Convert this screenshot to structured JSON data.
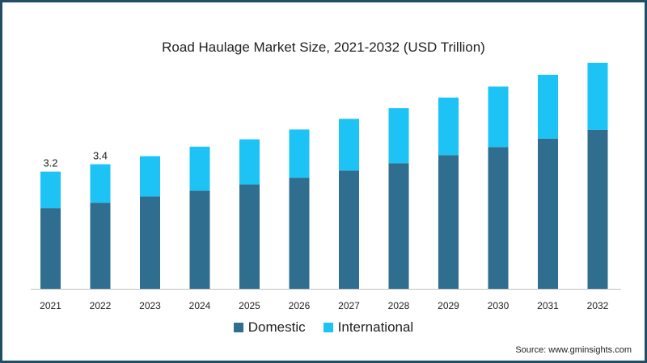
{
  "chart_data": {
    "type": "bar",
    "stacked": true,
    "title": "Road Haulage Market Size, 2021-2032 (USD Trillion)",
    "categories": [
      "2021",
      "2022",
      "2023",
      "2024",
      "2025",
      "2026",
      "2027",
      "2028",
      "2029",
      "2030",
      "2031",
      "2032"
    ],
    "series": [
      {
        "name": "Domestic",
        "color": "#2f6e8e",
        "values": [
          2.2,
          2.35,
          2.52,
          2.68,
          2.85,
          3.03,
          3.23,
          3.43,
          3.65,
          3.87,
          4.1,
          4.34
        ]
      },
      {
        "name": "International",
        "color": "#1cc3f4",
        "values": [
          1.0,
          1.05,
          1.1,
          1.2,
          1.23,
          1.32,
          1.41,
          1.5,
          1.57,
          1.65,
          1.74,
          1.83
        ]
      }
    ],
    "data_labels": [
      {
        "category": "2021",
        "text": "3.2"
      },
      {
        "category": "2022",
        "text": "3.4"
      }
    ],
    "ylim": [
      0,
      6.1
    ],
    "grid": false,
    "legend_position": "bottom"
  },
  "source": "Source: www.gminsights.com"
}
